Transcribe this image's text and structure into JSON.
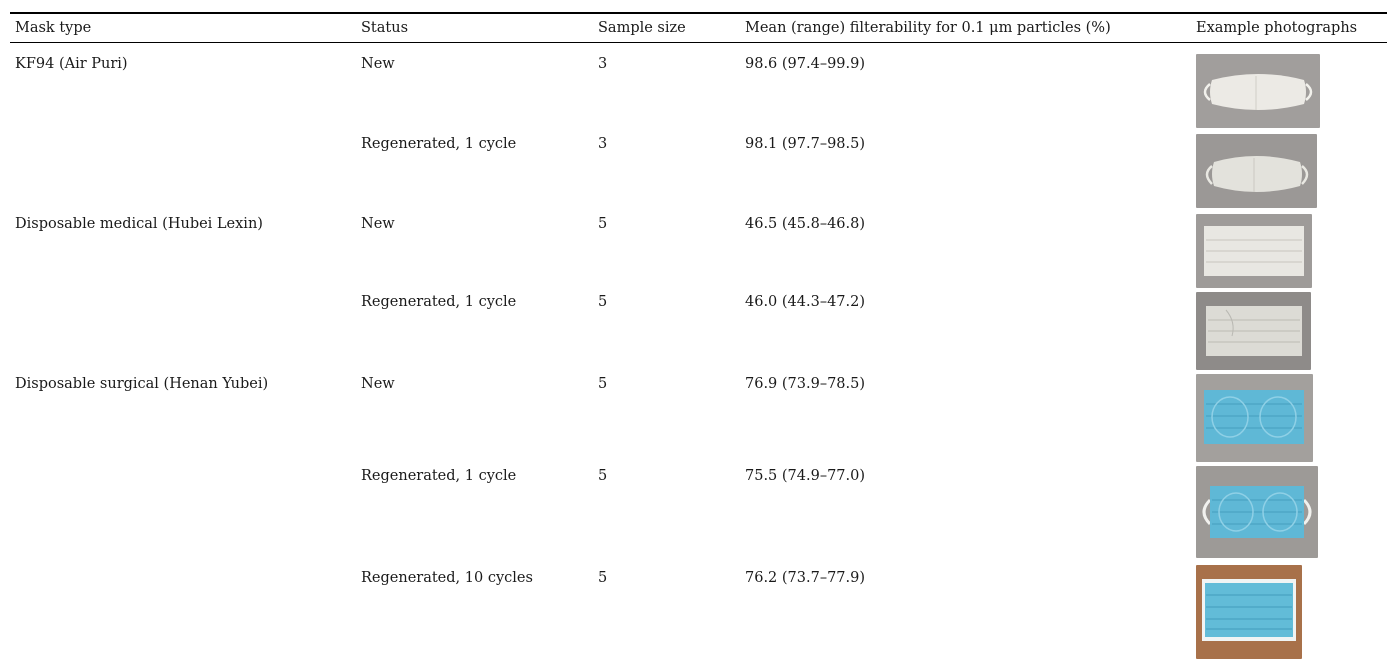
{
  "table": {
    "headers": [
      "Mask type",
      "Status",
      "Sample size",
      "Mean (range) filterability for 0.1 μm particles (%)",
      "Example photographs"
    ],
    "rows": [
      {
        "mask_type": "KF94 (Air Puri)",
        "status": "New",
        "sample_size": "3",
        "filterability": "98.6 (97.4–99.9)",
        "photo": "white-kf94-mask-photo"
      },
      {
        "mask_type": "",
        "status": "Regenerated, 1 cycle",
        "sample_size": "3",
        "filterability": "98.1 (97.7–98.5)",
        "photo": "white-kf94-mask-regenerated-photo"
      },
      {
        "mask_type": "Disposable medical (Hubei Lexin)",
        "status": "New",
        "sample_size": "5",
        "filterability": "46.5 (45.8–46.8)",
        "photo": "white-medical-mask-photo"
      },
      {
        "mask_type": "",
        "status": "Regenerated, 1 cycle",
        "sample_size": "5",
        "filterability": "46.0 (44.3–47.2)",
        "photo": "white-medical-mask-regenerated-photo"
      },
      {
        "mask_type": "Disposable surgical (Henan Yubei)",
        "status": "New",
        "sample_size": "5",
        "filterability": "76.9 (73.9–78.5)",
        "photo": "blue-surgical-mask-photo"
      },
      {
        "mask_type": "",
        "status": "Regenerated, 1 cycle",
        "sample_size": "5",
        "filterability": "75.5 (74.9–77.0)",
        "photo": "blue-surgical-mask-regenerated-photo"
      },
      {
        "mask_type": "",
        "status": "Regenerated, 10 cycles",
        "sample_size": "5",
        "filterability": "76.2 (73.7–77.9)",
        "photo": "blue-surgical-mask-10-cycles-photo"
      }
    ]
  },
  "colors": {
    "rule": "#000000",
    "text": "#1a1a1a",
    "photo_background_gray": "#9a9796",
    "photo_background_wood": "#a8714a",
    "mask_white": "#ecebe6",
    "mask_blue": "#5fb8d6"
  }
}
